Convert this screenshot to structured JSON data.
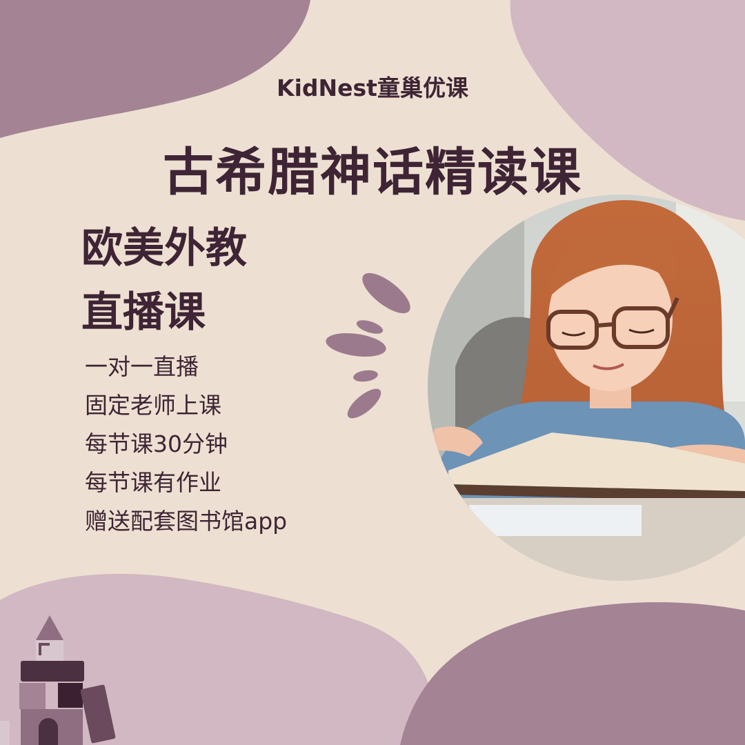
{
  "brand": "KidNest童巢优课",
  "title": "古希腊神话精读课",
  "subtitle": {
    "line1": "欧美外教",
    "line2": "直播课"
  },
  "features": [
    "一对一直播",
    "固定老师上课",
    "每节课30分钟",
    "每节课有作业",
    "赠送配套图书馆app"
  ],
  "colors": {
    "background": "#ede0d2",
    "blob_dark": "#a48395",
    "blob_light": "#d2b8c2",
    "text": "#3e2434",
    "accent_strokes": "#9c7a8e"
  },
  "photo": {
    "description_icon": "girl-reading-photo"
  }
}
